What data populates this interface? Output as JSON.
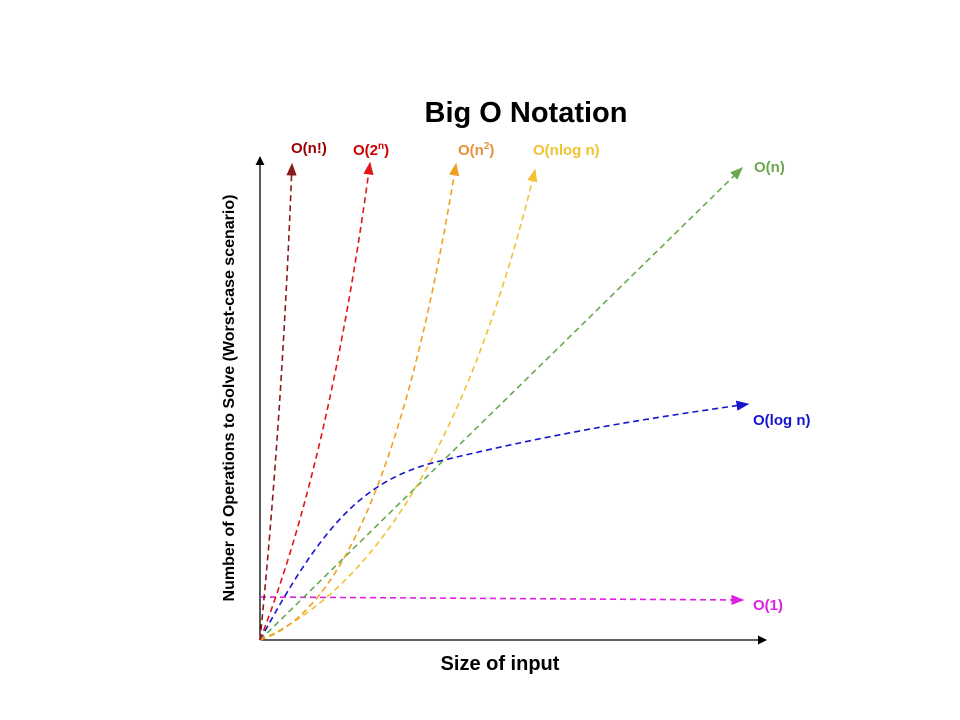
{
  "title": "Big O Notation",
  "x_axis_label": "Size of input",
  "y_axis_label": "Number of Operations to Solve (Worst-case scenario)",
  "curves": [
    {
      "label": "O(n!)"
    },
    {
      "label_main": "O(2",
      "label_sup": "n",
      "label_end": ")"
    },
    {
      "label_main": "O(n",
      "label_sup": "2",
      "label_end": ")"
    },
    {
      "label": "O(nlog n)"
    },
    {
      "label": "O(n)"
    },
    {
      "label": "O(log n)"
    },
    {
      "label": "O(1)"
    }
  ]
}
